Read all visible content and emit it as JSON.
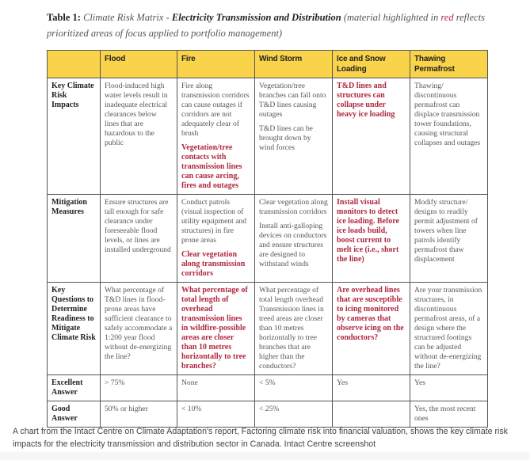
{
  "title": {
    "lead": "Table 1:",
    "italic": "Climate Risk Matrix -",
    "bold_italic": "Electricity Transmission and Distribution",
    "note_before": "(material highlighted in",
    "note_red": "red",
    "note_after": "reflects prioritized areas of focus applied to portfolio management)"
  },
  "colors": {
    "header_bg": "#f9d44b",
    "highlight_red": "#b0283f",
    "border": "#555555"
  },
  "table": {
    "headers": [
      "",
      "Flood",
      "Fire",
      "Wind Storm",
      "Ice and Snow Loading",
      "Thawing Permafrost"
    ],
    "rows": [
      {
        "label": "Key Climate Risk Impacts",
        "cells": [
          [
            {
              "text": "Flood-induced high water levels result in inadequate electrical clearances below lines that are hazardous to the public",
              "red": false
            }
          ],
          [
            {
              "text": "Fire along transmission corridors can cause outages if corridors are not adequately clear of brush",
              "red": false
            },
            {
              "text": "Vegetation/tree contacts with transmission lines can cause arcing, fires and outages",
              "red": true
            }
          ],
          [
            {
              "text": "Vegetation/tree branches can fall onto T&D lines causing outages",
              "red": false
            },
            {
              "text": "T&D lines can be brought down by wind forces",
              "red": false
            }
          ],
          [
            {
              "text": "T&D lines and structures can collapse under heavy ice loading",
              "red": true
            }
          ],
          [
            {
              "text": "Thawing/ discontinuous permafrost can displace transmission tower foundations, causing structural collapses and outages",
              "red": false
            }
          ]
        ]
      },
      {
        "label": "Mitigation Measures",
        "cells": [
          [
            {
              "text": "Ensure structures are tall enough for safe clearance under foreseeable flood levels, or lines are installed underground",
              "red": false
            }
          ],
          [
            {
              "text": "Conduct patrols (visual inspection of utility equipment and structures) in fire prone areas",
              "red": false
            },
            {
              "text": "Clear vegetation along transmission corridors",
              "red": true
            }
          ],
          [
            {
              "text": "Clear vegetation along transmission corridors",
              "red": false
            },
            {
              "text": "Install anti-galloping devices on conductors and ensure structures are designed to withstand winds",
              "red": false
            }
          ],
          [
            {
              "text": "Install visual monitors to detect ice loading. Before ice loads build, boost current to melt ice (i.e., short the line)",
              "red": true
            }
          ],
          [
            {
              "text": "Modify structure/ designs to readily permit adjustment of towers when line patrols identify permafrost thaw displacement",
              "red": false
            }
          ]
        ]
      },
      {
        "label": "Key Questions to Determine Readiness to Mitigate Climate Risk",
        "cells": [
          [
            {
              "text": "What percentage of T&D lines in flood-prone areas have sufficient clearance to safely accommodate a 1:200 year flood without de-energizing the line?",
              "red": false
            }
          ],
          [
            {
              "text": "What percentage of total length of overhead transmission lines in wildfire-possible areas are closer than 10 metres horizontally to tree branches?",
              "red": true
            }
          ],
          [
            {
              "text": "What percentage of total length overhead Transmission lines in treed areas are closer than 10 metres horizontally to tree branches that are higher than the conductors?",
              "red": false
            }
          ],
          [
            {
              "text": "Are overhead lines that are susceptible to icing monitored by cameras that observe icing on the conductors?",
              "red": true
            }
          ],
          [
            {
              "text": "Are your transmission structures, in discontinuous permafrost areas, of a design where the structured footings can be adjusted without de-energizing the line?",
              "red": false
            }
          ]
        ]
      },
      {
        "label": "Excellent Answer",
        "cells": [
          [
            {
              "text": "> 75%",
              "red": false
            }
          ],
          [
            {
              "text": "None",
              "red": false
            }
          ],
          [
            {
              "text": "< 5%",
              "red": false
            }
          ],
          [
            {
              "text": "Yes",
              "red": false
            }
          ],
          [
            {
              "text": "Yes",
              "red": false
            }
          ]
        ]
      },
      {
        "label": "Good Answer",
        "cells": [
          [
            {
              "text": "50% or higher",
              "red": false
            }
          ],
          [
            {
              "text": "< 10%",
              "red": false
            }
          ],
          [
            {
              "text": "< 25%",
              "red": false
            }
          ],
          [],
          [
            {
              "text": "Yes, the most recent ones",
              "red": false
            }
          ]
        ]
      }
    ]
  },
  "caption": "A chart from the Intact Centre on Climate Adaptation's report, Factoring climate risk into financial valuation, shows the key climate risk impacts for the electricity transmission and distribution sector in Canada. Intact Centre screenshot"
}
